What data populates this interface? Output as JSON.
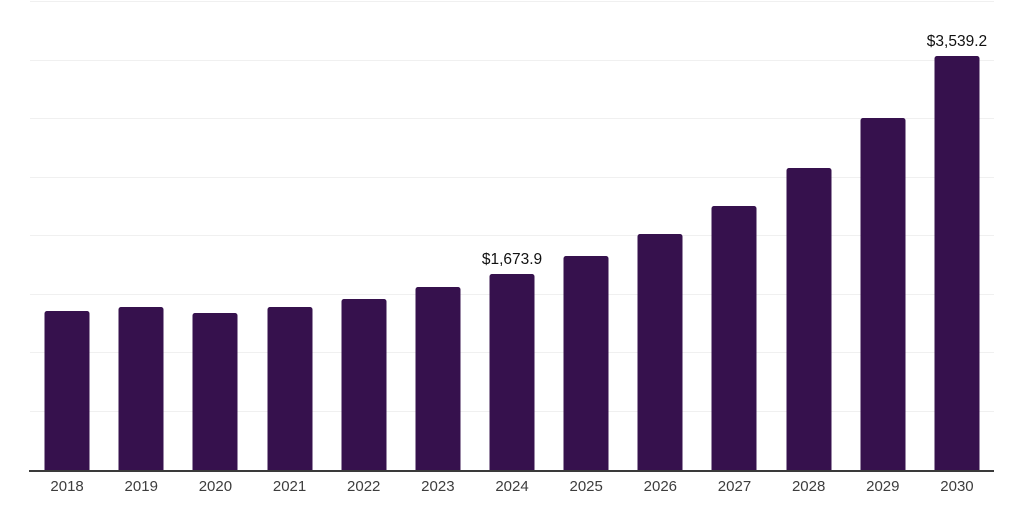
{
  "chart_data": {
    "type": "bar",
    "title": "",
    "xlabel": "",
    "ylabel": "",
    "categories": [
      "2018",
      "2019",
      "2020",
      "2021",
      "2022",
      "2023",
      "2024",
      "2025",
      "2026",
      "2027",
      "2028",
      "2029",
      "2030"
    ],
    "values": [
      1360,
      1390,
      1340,
      1395,
      1460,
      1565,
      1673.9,
      1830,
      2015,
      2255,
      2585,
      3005,
      3539.2
    ],
    "data_labels": {
      "2024": "$1,673.9",
      "2030": "$3,539.2"
    },
    "value_prefix": "$",
    "ylim": [
      0,
      4000
    ],
    "gridline_step": 500,
    "grid": "horizontal-only",
    "legend": "none",
    "y_axis_labels": "none"
  },
  "colors": {
    "bar": "#36114d",
    "gridline": "#f0f0f0",
    "axis_line": "#3a3a3a",
    "data_label_text": "#111111",
    "tick_label_text": "#3d3d3d",
    "background": "#ffffff"
  }
}
